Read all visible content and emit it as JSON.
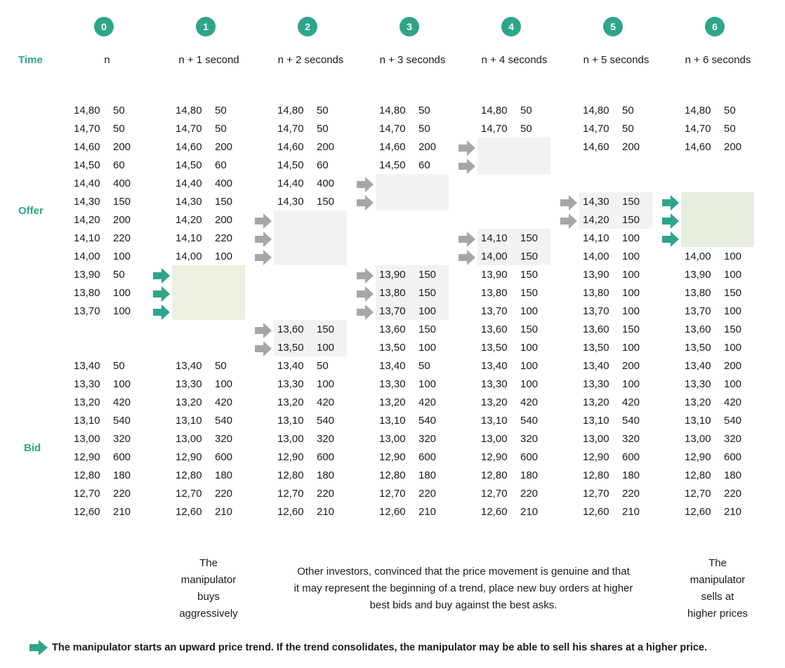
{
  "labels": {
    "time": "Time",
    "offer": "Offer",
    "bid": "Bid"
  },
  "columns": [
    {
      "num": "0",
      "time": "n",
      "entries": [
        {
          "row": 0,
          "price": "14,80",
          "qty": "50"
        },
        {
          "row": 1,
          "price": "14,70",
          "qty": "50"
        },
        {
          "row": 2,
          "price": "14,60",
          "qty": "200"
        },
        {
          "row": 3,
          "price": "14,50",
          "qty": "60"
        },
        {
          "row": 4,
          "price": "14,40",
          "qty": "400"
        },
        {
          "row": 5,
          "price": "14,30",
          "qty": "150"
        },
        {
          "row": 6,
          "price": "14,20",
          "qty": "200"
        },
        {
          "row": 7,
          "price": "14,10",
          "qty": "220"
        },
        {
          "row": 8,
          "price": "14,00",
          "qty": "100"
        },
        {
          "row": 9,
          "price": "13,90",
          "qty": "50"
        },
        {
          "row": 10,
          "price": "13,80",
          "qty": "100"
        },
        {
          "row": 11,
          "price": "13,70",
          "qty": "100"
        },
        {
          "row": 14,
          "price": "13,40",
          "qty": "50"
        },
        {
          "row": 15,
          "price": "13,30",
          "qty": "100"
        },
        {
          "row": 16,
          "price": "13,20",
          "qty": "420"
        },
        {
          "row": 17,
          "price": "13,10",
          "qty": "540"
        },
        {
          "row": 18,
          "price": "13,00",
          "qty": "320"
        },
        {
          "row": 19,
          "price": "12,90",
          "qty": "600"
        },
        {
          "row": 20,
          "price": "12,80",
          "qty": "180"
        },
        {
          "row": 21,
          "price": "12,70",
          "qty": "220"
        },
        {
          "row": 22,
          "price": "12,60",
          "qty": "210"
        }
      ]
    },
    {
      "num": "1",
      "time": "n + 1 second",
      "entries": [
        {
          "row": 0,
          "price": "14,80",
          "qty": "50"
        },
        {
          "row": 1,
          "price": "14,70",
          "qty": "50"
        },
        {
          "row": 2,
          "price": "14,60",
          "qty": "200"
        },
        {
          "row": 3,
          "price": "14,50",
          "qty": "60"
        },
        {
          "row": 4,
          "price": "14,40",
          "qty": "400"
        },
        {
          "row": 5,
          "price": "14,30",
          "qty": "150"
        },
        {
          "row": 6,
          "price": "14,20",
          "qty": "200"
        },
        {
          "row": 7,
          "price": "14,10",
          "qty": "220"
        },
        {
          "row": 8,
          "price": "14,00",
          "qty": "100"
        },
        {
          "row": 14,
          "price": "13,40",
          "qty": "50"
        },
        {
          "row": 15,
          "price": "13,30",
          "qty": "100"
        },
        {
          "row": 16,
          "price": "13,20",
          "qty": "420"
        },
        {
          "row": 17,
          "price": "13,10",
          "qty": "540"
        },
        {
          "row": 18,
          "price": "13,00",
          "qty": "320"
        },
        {
          "row": 19,
          "price": "12,90",
          "qty": "600"
        },
        {
          "row": 20,
          "price": "12,80",
          "qty": "180"
        },
        {
          "row": 21,
          "price": "12,70",
          "qty": "220"
        },
        {
          "row": 22,
          "price": "12,60",
          "qty": "210"
        }
      ]
    },
    {
      "num": "2",
      "time": "n + 2 seconds",
      "entries": [
        {
          "row": 0,
          "price": "14,80",
          "qty": "50"
        },
        {
          "row": 1,
          "price": "14,70",
          "qty": "50"
        },
        {
          "row": 2,
          "price": "14,60",
          "qty": "200"
        },
        {
          "row": 3,
          "price": "14,50",
          "qty": "60"
        },
        {
          "row": 4,
          "price": "14,40",
          "qty": "400"
        },
        {
          "row": 5,
          "price": "14,30",
          "qty": "150"
        },
        {
          "row": 12,
          "price": "13,60",
          "qty": "150"
        },
        {
          "row": 13,
          "price": "13,50",
          "qty": "100"
        },
        {
          "row": 14,
          "price": "13,40",
          "qty": "50"
        },
        {
          "row": 15,
          "price": "13,30",
          "qty": "100"
        },
        {
          "row": 16,
          "price": "13,20",
          "qty": "420"
        },
        {
          "row": 17,
          "price": "13,10",
          "qty": "540"
        },
        {
          "row": 18,
          "price": "13,00",
          "qty": "320"
        },
        {
          "row": 19,
          "price": "12,90",
          "qty": "600"
        },
        {
          "row": 20,
          "price": "12,80",
          "qty": "180"
        },
        {
          "row": 21,
          "price": "12,70",
          "qty": "220"
        },
        {
          "row": 22,
          "price": "12,60",
          "qty": "210"
        }
      ]
    },
    {
      "num": "3",
      "time": "n + 3 seconds",
      "entries": [
        {
          "row": 0,
          "price": "14,80",
          "qty": "50"
        },
        {
          "row": 1,
          "price": "14,70",
          "qty": "50"
        },
        {
          "row": 2,
          "price": "14,60",
          "qty": "200"
        },
        {
          "row": 3,
          "price": "14,50",
          "qty": "60"
        },
        {
          "row": 9,
          "price": "13,90",
          "qty": "150"
        },
        {
          "row": 10,
          "price": "13,80",
          "qty": "150"
        },
        {
          "row": 11,
          "price": "13,70",
          "qty": "100"
        },
        {
          "row": 12,
          "price": "13,60",
          "qty": "150"
        },
        {
          "row": 13,
          "price": "13,50",
          "qty": "100"
        },
        {
          "row": 14,
          "price": "13,40",
          "qty": "50"
        },
        {
          "row": 15,
          "price": "13,30",
          "qty": "100"
        },
        {
          "row": 16,
          "price": "13,20",
          "qty": "420"
        },
        {
          "row": 17,
          "price": "13,10",
          "qty": "540"
        },
        {
          "row": 18,
          "price": "13,00",
          "qty": "320"
        },
        {
          "row": 19,
          "price": "12,90",
          "qty": "600"
        },
        {
          "row": 20,
          "price": "12,80",
          "qty": "180"
        },
        {
          "row": 21,
          "price": "12,70",
          "qty": "220"
        },
        {
          "row": 22,
          "price": "12,60",
          "qty": "210"
        }
      ]
    },
    {
      "num": "4",
      "time": "n + 4 seconds",
      "entries": [
        {
          "row": 0,
          "price": "14,80",
          "qty": "50"
        },
        {
          "row": 1,
          "price": "14,70",
          "qty": "50"
        },
        {
          "row": 7,
          "price": "14,10",
          "qty": "150"
        },
        {
          "row": 8,
          "price": "14,00",
          "qty": "150"
        },
        {
          "row": 9,
          "price": "13,90",
          "qty": "150"
        },
        {
          "row": 10,
          "price": "13,80",
          "qty": "150"
        },
        {
          "row": 11,
          "price": "13,70",
          "qty": "100"
        },
        {
          "row": 12,
          "price": "13,60",
          "qty": "150"
        },
        {
          "row": 13,
          "price": "13,50",
          "qty": "100"
        },
        {
          "row": 14,
          "price": "13,40",
          "qty": "100"
        },
        {
          "row": 15,
          "price": "13,30",
          "qty": "100"
        },
        {
          "row": 16,
          "price": "13,20",
          "qty": "420"
        },
        {
          "row": 17,
          "price": "13,10",
          "qty": "540"
        },
        {
          "row": 18,
          "price": "13,00",
          "qty": "320"
        },
        {
          "row": 19,
          "price": "12,90",
          "qty": "600"
        },
        {
          "row": 20,
          "price": "12,80",
          "qty": "180"
        },
        {
          "row": 21,
          "price": "12,70",
          "qty": "220"
        },
        {
          "row": 22,
          "price": "12,60",
          "qty": "210"
        }
      ]
    },
    {
      "num": "5",
      "time": "n + 5 seconds",
      "entries": [
        {
          "row": 0,
          "price": "14,80",
          "qty": "50"
        },
        {
          "row": 1,
          "price": "14,70",
          "qty": "50"
        },
        {
          "row": 2,
          "price": "14,60",
          "qty": "200"
        },
        {
          "row": 5,
          "price": "14,30",
          "qty": "150"
        },
        {
          "row": 6,
          "price": "14,20",
          "qty": "150"
        },
        {
          "row": 7,
          "price": "14,10",
          "qty": "100"
        },
        {
          "row": 8,
          "price": "14,00",
          "qty": "100"
        },
        {
          "row": 9,
          "price": "13,90",
          "qty": "100"
        },
        {
          "row": 10,
          "price": "13,80",
          "qty": "100"
        },
        {
          "row": 11,
          "price": "13,70",
          "qty": "100"
        },
        {
          "row": 12,
          "price": "13,60",
          "qty": "150"
        },
        {
          "row": 13,
          "price": "13,50",
          "qty": "100"
        },
        {
          "row": 14,
          "price": "13,40",
          "qty": "200"
        },
        {
          "row": 15,
          "price": "13,30",
          "qty": "100"
        },
        {
          "row": 16,
          "price": "13,20",
          "qty": "420"
        },
        {
          "row": 17,
          "price": "13,10",
          "qty": "540"
        },
        {
          "row": 18,
          "price": "13,00",
          "qty": "320"
        },
        {
          "row": 19,
          "price": "12,90",
          "qty": "600"
        },
        {
          "row": 20,
          "price": "12,80",
          "qty": "180"
        },
        {
          "row": 21,
          "price": "12,70",
          "qty": "220"
        },
        {
          "row": 22,
          "price": "12,60",
          "qty": "210"
        }
      ]
    },
    {
      "num": "6",
      "time": "n + 6 seconds",
      "entries": [
        {
          "row": 0,
          "price": "14,80",
          "qty": "50"
        },
        {
          "row": 1,
          "price": "14,70",
          "qty": "50"
        },
        {
          "row": 2,
          "price": "14,60",
          "qty": "200"
        },
        {
          "row": 8,
          "price": "14,00",
          "qty": "100"
        },
        {
          "row": 9,
          "price": "13,90",
          "qty": "100"
        },
        {
          "row": 10,
          "price": "13,80",
          "qty": "150"
        },
        {
          "row": 11,
          "price": "13,70",
          "qty": "100"
        },
        {
          "row": 12,
          "price": "13,60",
          "qty": "150"
        },
        {
          "row": 13,
          "price": "13,50",
          "qty": "100"
        },
        {
          "row": 14,
          "price": "13,40",
          "qty": "200"
        },
        {
          "row": 15,
          "price": "13,30",
          "qty": "100"
        },
        {
          "row": 16,
          "price": "13,20",
          "qty": "420"
        },
        {
          "row": 17,
          "price": "13,10",
          "qty": "540"
        },
        {
          "row": 18,
          "price": "13,00",
          "qty": "320"
        },
        {
          "row": 19,
          "price": "12,90",
          "qty": "600"
        },
        {
          "row": 20,
          "price": "12,80",
          "qty": "180"
        },
        {
          "row": 21,
          "price": "12,70",
          "qty": "220"
        },
        {
          "row": 22,
          "price": "12,60",
          "qty": "210"
        }
      ]
    }
  ],
  "notes": {
    "buys": [
      "The",
      "manipulator",
      "buys",
      "aggressively"
    ],
    "others": [
      "Other investors, convinced that the price movement is genuine and that",
      "it may represent the beginning of a trend, place new buy orders at higher",
      "best bids and buy against the best asks."
    ],
    "sells": [
      "The",
      "manipulator",
      "sells at",
      "higher prices"
    ]
  },
  "footer": "The manipulator starts an upward price trend. If the trend consolidates, the manipulator may be able to sell his shares at a higher price.",
  "colors": {
    "accent": "#2ea58a",
    "gray_arrow": "#a6a6a6",
    "gray_box": "#f2f2f2",
    "green_box": "#ebf0e0"
  }
}
